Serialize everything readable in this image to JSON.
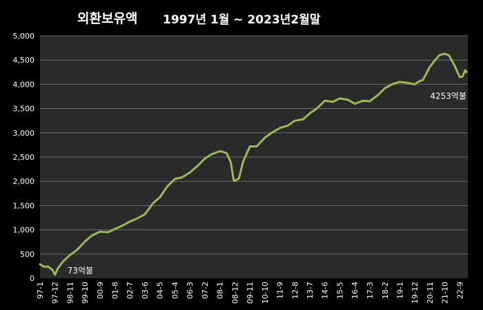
{
  "chart_data": {
    "type": "line",
    "title": "외환보유액",
    "subtitle": "1997년 1월 ~ 2023년2월말",
    "xlabel": "",
    "ylabel": "",
    "ylim": [
      0,
      5000
    ],
    "yticks": [
      "0",
      "500",
      "1,000",
      "1,500",
      "2,000",
      "2,500",
      "3,000",
      "3,500",
      "4,000",
      "4,500",
      "5,000"
    ],
    "xticks": [
      "97-1",
      "97-12",
      "98-11",
      "99-10",
      "00-9",
      "01-8",
      "02-7",
      "03-6",
      "04-5",
      "05-4",
      "06-3",
      "07-2",
      "08-1",
      "08-12",
      "09-11",
      "10-10",
      "11-9",
      "12-8",
      "13-7",
      "14-6",
      "15-5",
      "16-4",
      "17-3",
      "18-2",
      "19-1",
      "19-12",
      "20-11",
      "21-10",
      "22-9"
    ],
    "grid": "horizontal",
    "colors": {
      "background": "#2a2a2a",
      "line": "#9bbb59",
      "grid": "#6e6e6e"
    },
    "annotations": [
      {
        "text": "73억불",
        "x": "97-12",
        "y": 73
      },
      {
        "text": "4253억불",
        "x": "23-2",
        "y": 4253
      }
    ],
    "series": [
      {
        "name": "",
        "x": [
          "1997-01",
          "1997-04",
          "1997-07",
          "1997-10",
          "1997-12",
          "1998-02",
          "1998-06",
          "1998-11",
          "1999-04",
          "1999-10",
          "2000-03",
          "2000-09",
          "2001-03",
          "2001-08",
          "2002-01",
          "2002-07",
          "2002-12",
          "2003-06",
          "2003-12",
          "2004-05",
          "2004-10",
          "2005-04",
          "2005-09",
          "2006-03",
          "2006-09",
          "2007-02",
          "2007-07",
          "2008-01",
          "2008-03",
          "2008-06",
          "2008-09",
          "2008-11",
          "2008-12",
          "2009-03",
          "2009-06",
          "2009-11",
          "2010-04",
          "2010-10",
          "2011-03",
          "2011-09",
          "2012-03",
          "2012-08",
          "2013-02",
          "2013-07",
          "2013-12",
          "2014-06",
          "2014-12",
          "2015-05",
          "2015-11",
          "2016-04",
          "2016-10",
          "2017-03",
          "2017-09",
          "2018-02",
          "2018-08",
          "2019-01",
          "2019-07",
          "2019-12",
          "2020-03",
          "2020-06",
          "2020-11",
          "2021-03",
          "2021-06",
          "2021-10",
          "2022-01",
          "2022-05",
          "2022-09",
          "2022-11",
          "2023-01",
          "2023-02"
        ],
        "values": [
          290,
          240,
          240,
          180,
          73,
          200,
          350,
          480,
          580,
          760,
          880,
          960,
          950,
          1020,
          1080,
          1170,
          1230,
          1320,
          1550,
          1670,
          1880,
          2050,
          2080,
          2180,
          2330,
          2470,
          2560,
          2620,
          2610,
          2580,
          2390,
          2030,
          2010,
          2060,
          2400,
          2720,
          2720,
          2900,
          3000,
          3100,
          3150,
          3250,
          3280,
          3400,
          3500,
          3660,
          3640,
          3710,
          3680,
          3600,
          3660,
          3650,
          3780,
          3920,
          4010,
          4050,
          4030,
          4000,
          4060,
          4090,
          4360,
          4500,
          4600,
          4630,
          4600,
          4400,
          4150,
          4160,
          4290,
          4253
        ]
      }
    ]
  }
}
